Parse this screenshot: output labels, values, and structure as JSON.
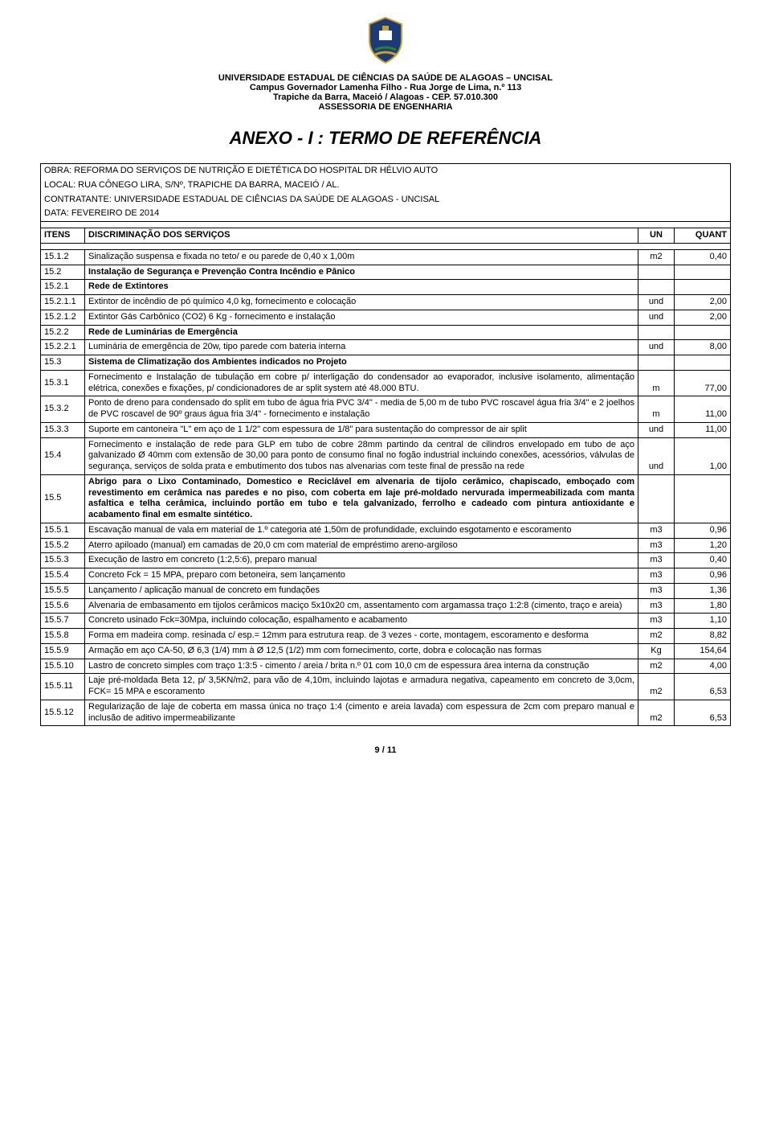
{
  "header": {
    "line1": "UNIVERSIDADE ESTADUAL DE CIÊNCIAS DA SAÚDE DE ALAGOAS – UNCISAL",
    "line2": "Campus Governador Lamenha Filho - Rua Jorge de Lima, n.º 113",
    "line3": "Trapiche da Barra, Maceió / Alagoas - CEP. 57.010.300",
    "line4": "ASSESSORIA DE ENGENHARIA"
  },
  "title": "ANEXO - I : TERMO DE REFERÊNCIA",
  "info": {
    "obra": "OBRA: REFORMA DO SERVIÇOS DE NUTRIÇÃO E DIETÉTICA DO HOSPITAL DR HÉLVIO AUTO",
    "local": "LOCAL: RUA CÔNEGO LIRA, S/Nº, TRAPICHE DA BARRA, MACEIÓ / AL.",
    "contratante": "CONTRATANTE: UNIVERSIDADE ESTADUAL DE CIÊNCIAS DA SAÚDE DE ALAGOAS - UNCISAL",
    "data": "DATA: FEVEREIRO DE 2014"
  },
  "columns": {
    "c1": "ITENS",
    "c2": "DISCRIMINAÇÃO DOS SERVIÇOS",
    "c3": "UN",
    "c4": "QUANT"
  },
  "rows": [
    {
      "item": "15.1.2",
      "desc": "Sinalização suspensa e fixada no teto/ e ou parede de 0,40 x 1,00m",
      "un": "m2",
      "qt": "0,40",
      "bold": false
    },
    {
      "item": "15.2",
      "desc": "Instalação de Segurança e Prevenção Contra Incêndio e Pânico",
      "un": "",
      "qt": "",
      "bold": true
    },
    {
      "item": "15.2.1",
      "desc": "Rede de Extintores",
      "un": "",
      "qt": "",
      "bold": true
    },
    {
      "item": "15.2.1.1",
      "desc": "Extintor de incêndio de pó químico 4,0 kg, fornecimento e colocação",
      "un": "und",
      "qt": "2,00",
      "bold": false
    },
    {
      "item": "15.2.1.2",
      "desc": "Extintor Gás Carbônico (CO2) 6 Kg - fornecimento e instalação",
      "un": "und",
      "qt": "2,00",
      "bold": false
    },
    {
      "item": "15.2.2",
      "desc": "Rede de Luminárias de Emergência",
      "un": "",
      "qt": "",
      "bold": true
    },
    {
      "item": "15.2.2.1",
      "desc": "Luminária de emergência de 20w, tipo parede com bateria interna",
      "un": "und",
      "qt": "8,00",
      "bold": false
    },
    {
      "item": "15.3",
      "desc": "Sistema de Climatização dos Ambientes indicados no Projeto",
      "un": "",
      "qt": "",
      "bold": true
    },
    {
      "item": "15.3.1",
      "desc": "Fornecimento e Instalação de tubulação em cobre p/ interligação do condensador ao evaporador, inclusive isolamento, alimentação elétrica, conexões e fixações, p/ condicionadores de ar split system até 48.000 BTU.",
      "un": "m",
      "qt": "77,00",
      "bold": false
    },
    {
      "item": "15.3.2",
      "desc": "Ponto de dreno para condensado do split em tubo de água fria PVC 3/4\" - media de 5,00 m de tubo PVC roscavel água fria 3/4\" e 2 joelhos de PVC roscavel de 90º graus água fria 3/4\" - fornecimento e instalação",
      "un": "m",
      "qt": "11,00",
      "bold": false
    },
    {
      "item": "15.3.3",
      "desc": "Suporte em cantoneira \"L\" em aço de 1 1/2\" com espessura de 1/8\" para sustentação do compressor de air split",
      "un": "und",
      "qt": "11,00",
      "bold": false
    },
    {
      "item": "15.4",
      "desc": "Fornecimento e instalação de rede para GLP em tubo de cobre 28mm partindo da central de cilindros envelopado em tubo de aço galvanizado Ø 40mm com extensão de 30,00 para ponto de consumo final no fogão industrial incluindo conexões, acessórios, válvulas de segurança, serviços de solda prata e embutimento dos tubos nas alvenarias com teste final de pressão na rede",
      "un": "und",
      "qt": "1,00",
      "bold": false
    },
    {
      "item": "15.5",
      "desc": "Abrigo para o Lixo Contaminado, Domestico e Reciclável em alvenaria de tijolo cerâmico, chapiscado, emboçado com revestimento em cerâmica nas paredes e no piso, com coberta em laje pré-moldado nervurada impermeabilizada com manta asfaltica e telha cerâmica, incluindo portão em tubo e tela galvanizado, ferrolho e cadeado com pintura antioxidante e acabamento final em esmalte sintético.",
      "un": "",
      "qt": "",
      "bold": true
    },
    {
      "item": "15.5.1",
      "desc": "Escavação manual de vala em material de 1.º categoria até 1,50m de profundidade, excluindo esgotamento e escoramento",
      "un": "m3",
      "qt": "0,96",
      "bold": false
    },
    {
      "item": "15.5.2",
      "desc": "Aterro apiloado (manual) em camadas de 20,0 cm com material de empréstimo areno-argiloso",
      "un": "m3",
      "qt": "1,20",
      "bold": false
    },
    {
      "item": "15.5.3",
      "desc": "Execução de lastro em concreto (1:2,5:6), preparo manual",
      "un": "m3",
      "qt": "0,40",
      "bold": false
    },
    {
      "item": "15.5.4",
      "desc": "Concreto Fck = 15 MPA, preparo com betoneira, sem lançamento",
      "un": "m3",
      "qt": "0,96",
      "bold": false
    },
    {
      "item": "15.5.5",
      "desc": "Lançamento / aplicação manual de concreto em fundações",
      "un": "m3",
      "qt": "1,36",
      "bold": false
    },
    {
      "item": "15.5.6",
      "desc": "Alvenaria de embasamento em tijolos cerâmicos maciço 5x10x20 cm, assentamento com argamassa traço 1:2:8 (cimento, traço e areia)",
      "un": "m3",
      "qt": "1,80",
      "bold": false
    },
    {
      "item": "15.5.7",
      "desc": "Concreto usinado Fck=30Mpa, incluindo colocação, espalhamento e acabamento",
      "un": "m3",
      "qt": "1,10",
      "bold": false
    },
    {
      "item": "15.5.8",
      "desc": "Forma em madeira comp. resinada c/ esp.= 12mm para estrutura reap. de 3 vezes - corte, montagem, escoramento e desforma",
      "un": "m2",
      "qt": "8,82",
      "bold": false
    },
    {
      "item": "15.5.9",
      "desc": "Armação em aço CA-50, Ø 6,3 (1/4) mm à Ø 12,5 (1/2) mm com fornecimento, corte, dobra e colocação nas formas",
      "un": "Kg",
      "qt": "154,64",
      "bold": false
    },
    {
      "item": "15.5.10",
      "desc": "Lastro de concreto simples com traço 1:3:5 - cimento / areia / brita n.º 01 com 10,0 cm de espessura área interna da construção",
      "un": "m2",
      "qt": "4,00",
      "bold": false
    },
    {
      "item": "15.5.11",
      "desc": "Laje pré-moldada Beta 12, p/ 3,5KN/m2, para vão de 4,10m, incluindo lajotas e armadura negativa, capeamento em concreto de 3,0cm, FCK= 15 MPA e escoramento",
      "un": "m2",
      "qt": "6,53",
      "bold": false
    },
    {
      "item": "15.5.12",
      "desc": "Regularização de laje de coberta em massa única no traço 1:4 (cimento e areia lavada) com espessura de 2cm com preparo manual e inclusão de aditivo impermeabilizante",
      "un": "m2",
      "qt": "6,53",
      "bold": false
    }
  ],
  "footer": "9 / 11",
  "colors": {
    "text": "#000000",
    "background": "#ffffff",
    "border": "#000000",
    "logo_blue": "#1a3a7a",
    "logo_gold": "#c9a227",
    "logo_green": "#2e7d32"
  }
}
